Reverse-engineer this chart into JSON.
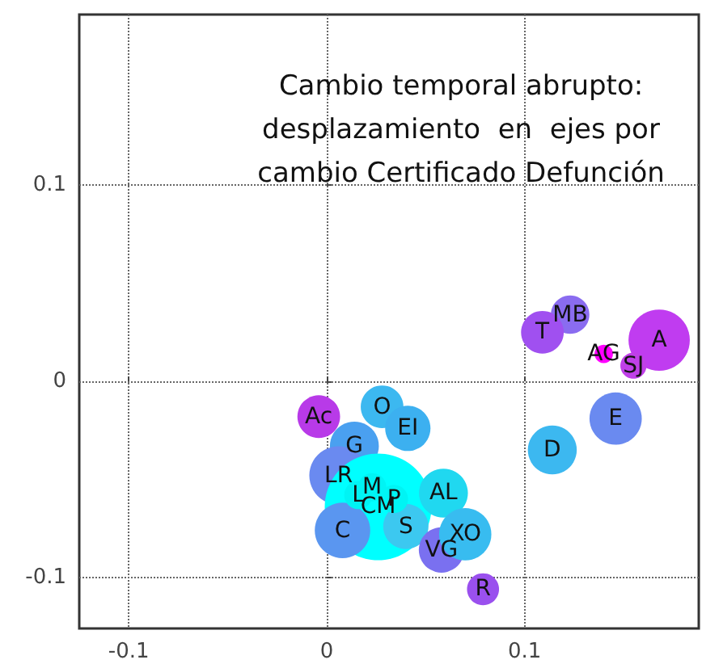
{
  "chart_data": {
    "type": "bubble",
    "title": "Cambio temporal abrupto:\ndesplazamiento  en  ejes por\ncambio Certificado Defunción",
    "xlim": [
      -0.125,
      0.188
    ],
    "ylim": [
      -0.126,
      0.187
    ],
    "xticks": [
      -0.1,
      0,
      0.1
    ],
    "yticks": [
      -0.1,
      0,
      0.1
    ],
    "grid": true,
    "line_style": "dotted",
    "series": [
      {
        "name": "A",
        "color": "#c03cf0",
        "x": [
          0.168
        ],
        "values": [
          0.021
        ],
        "sizes": [
          0.33
        ]
      },
      {
        "name": "SJ",
        "color": "#c040e8",
        "x": [
          0.155
        ],
        "values": [
          0.008
        ],
        "sizes": [
          0.06
        ]
      },
      {
        "name": "AG",
        "color": "#ff00ff",
        "x": [
          0.14
        ],
        "values": [
          0.014
        ],
        "sizes": [
          0.03
        ]
      },
      {
        "name": "MB",
        "color": "#8a6cf0",
        "x": [
          0.123
        ],
        "values": [
          0.034
        ],
        "sizes": [
          0.13
        ]
      },
      {
        "name": "T",
        "color": "#a050f0",
        "x": [
          0.109
        ],
        "values": [
          0.025
        ],
        "sizes": [
          0.16
        ]
      },
      {
        "name": "E",
        "color": "#6a8af0",
        "x": [
          0.146
        ],
        "values": [
          -0.019
        ],
        "sizes": [
          0.24
        ]
      },
      {
        "name": "D",
        "color": "#3cb8f0",
        "x": [
          0.114
        ],
        "values": [
          -0.035
        ],
        "sizes": [
          0.21
        ]
      },
      {
        "name": "Ac",
        "color": "#b83ae8",
        "x": [
          -0.004
        ],
        "values": [
          -0.018
        ],
        "sizes": [
          0.16
        ]
      },
      {
        "name": "O",
        "color": "#3cb8f0",
        "x": [
          0.028
        ],
        "values": [
          -0.013
        ],
        "sizes": [
          0.16
        ]
      },
      {
        "name": "EI",
        "color": "#3cb0f0",
        "x": [
          0.041
        ],
        "values": [
          -0.024
        ],
        "sizes": [
          0.18
        ]
      },
      {
        "name": "G",
        "color": "#4aa0f0",
        "x": [
          0.014
        ],
        "values": [
          -0.033
        ],
        "sizes": [
          0.21
        ]
      },
      {
        "name": "LR",
        "color": "#6a8af0",
        "x": [
          0.006
        ],
        "values": [
          -0.048
        ],
        "sizes": [
          0.3
        ]
      },
      {
        "name": "CM",
        "color": "#00ffff",
        "x": [
          0.026
        ],
        "values": [
          -0.064
        ],
        "sizes": [
          1
        ]
      },
      {
        "name": "C",
        "color": "#5a96f0",
        "x": [
          0.008
        ],
        "values": [
          -0.076
        ],
        "sizes": [
          0.27
        ]
      },
      {
        "name": "S",
        "color": "#3cc8f0",
        "x": [
          0.04
        ],
        "values": [
          -0.074
        ],
        "sizes": [
          0.18
        ]
      },
      {
        "name": "AL",
        "color": "#20d8f0",
        "x": [
          0.059
        ],
        "values": [
          -0.057
        ],
        "sizes": [
          0.21
        ]
      },
      {
        "name": "VG",
        "color": "#7a70f0",
        "x": [
          0.058
        ],
        "values": [
          -0.086
        ],
        "sizes": [
          0.18
        ]
      },
      {
        "name": "XO",
        "color": "#38bcf0",
        "x": [
          0.07
        ],
        "values": [
          -0.078
        ],
        "sizes": [
          0.24
        ]
      },
      {
        "name": "R",
        "color": "#9a50ee",
        "x": [
          0.079
        ],
        "values": [
          -0.106
        ],
        "sizes": [
          0.09
        ]
      },
      {
        "name": "L",
        "color": "#00f4f4",
        "x": [
          0.016
        ],
        "values": [
          -0.058
        ],
        "sizes": [
          0.07
        ]
      },
      {
        "name": "M",
        "color": "#00f4f4",
        "x": [
          0.023
        ],
        "values": [
          -0.054
        ],
        "sizes": [
          0.07
        ]
      },
      {
        "name": "P",
        "color": "#00f4f4",
        "x": [
          0.034
        ],
        "values": [
          -0.06
        ],
        "sizes": [
          0.07
        ]
      }
    ]
  }
}
